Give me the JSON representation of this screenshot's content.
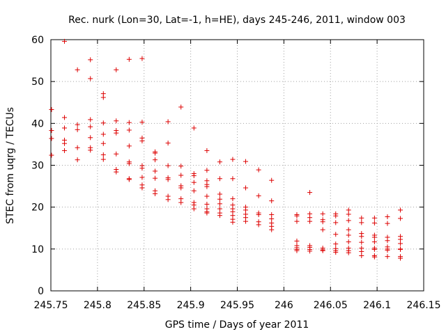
{
  "chart_data": {
    "type": "scatter",
    "title": "Rec. nurk (Lon=30, Lat=-1, h=HE), days 245-246, 2011, window 003",
    "xlabel": "GPS time / Days of year 2011",
    "ylabel": "STEC from uqrg / TECUs",
    "xlim": [
      245.75,
      246.15
    ],
    "ylim": [
      0,
      60
    ],
    "xticks": [
      245.75,
      245.8,
      245.85,
      245.9,
      245.95,
      246,
      246.05,
      246.1,
      246.15
    ],
    "xtick_labels": [
      "245.75",
      "245.8",
      "245.85",
      "245.9",
      "245.95",
      "246",
      "246.05",
      "246.1",
      "246.15"
    ],
    "yticks": [
      0,
      10,
      20,
      30,
      40,
      50,
      60
    ],
    "ytick_labels": [
      "0",
      "10",
      "20",
      "30",
      "40",
      "50",
      "60"
    ],
    "grid": true,
    "marker": "+",
    "color": "#dd0000",
    "points": [
      [
        245.7507,
        43.3
      ],
      [
        245.7507,
        38.3
      ],
      [
        245.7507,
        36.4
      ],
      [
        245.7507,
        32.4
      ],
      [
        245.7646,
        59.6
      ],
      [
        245.7646,
        41.4
      ],
      [
        245.7646,
        38.9
      ],
      [
        245.7646,
        36.0
      ],
      [
        245.7646,
        35.2
      ],
      [
        245.7646,
        33.5
      ],
      [
        245.7785,
        52.8
      ],
      [
        245.7785,
        39.7
      ],
      [
        245.7785,
        38.5
      ],
      [
        245.7785,
        34.2
      ],
      [
        245.7785,
        31.3
      ],
      [
        245.7924,
        55.2
      ],
      [
        245.7924,
        50.7
      ],
      [
        245.7924,
        40.9
      ],
      [
        245.7924,
        39.2
      ],
      [
        245.7924,
        36.6
      ],
      [
        245.7924,
        34.2
      ],
      [
        245.7924,
        33.6
      ],
      [
        245.8063,
        47.1
      ],
      [
        245.8063,
        46.2
      ],
      [
        245.8063,
        40.1
      ],
      [
        245.8063,
        37.4
      ],
      [
        245.8063,
        35.2
      ],
      [
        245.8063,
        32.5
      ],
      [
        245.8063,
        31.4
      ],
      [
        245.8201,
        52.8
      ],
      [
        245.8201,
        40.6
      ],
      [
        245.8201,
        38.3
      ],
      [
        245.8201,
        37.7
      ],
      [
        245.8201,
        32.7
      ],
      [
        245.8201,
        29.0
      ],
      [
        245.8201,
        28.4
      ],
      [
        245.834,
        55.3
      ],
      [
        245.834,
        40.2
      ],
      [
        245.834,
        38.4
      ],
      [
        245.834,
        34.6
      ],
      [
        245.834,
        30.8
      ],
      [
        245.834,
        30.4
      ],
      [
        245.834,
        26.8
      ],
      [
        245.834,
        26.6
      ],
      [
        245.8479,
        55.5
      ],
      [
        245.8479,
        40.3
      ],
      [
        245.8479,
        36.5
      ],
      [
        245.8479,
        35.8
      ],
      [
        245.8479,
        29.9
      ],
      [
        245.8479,
        29.3
      ],
      [
        245.8479,
        27.1
      ],
      [
        245.8479,
        25.3
      ],
      [
        245.8479,
        24.6
      ],
      [
        245.8618,
        33.2
      ],
      [
        245.8618,
        32.9
      ],
      [
        245.8618,
        31.3
      ],
      [
        245.8618,
        28.6
      ],
      [
        245.8618,
        26.9
      ],
      [
        245.8618,
        23.9
      ],
      [
        245.8618,
        23.2
      ],
      [
        245.8757,
        40.4
      ],
      [
        245.8757,
        35.3
      ],
      [
        245.8757,
        29.9
      ],
      [
        245.8757,
        27.0
      ],
      [
        245.8757,
        26.6
      ],
      [
        245.8757,
        22.6
      ],
      [
        245.8757,
        21.8
      ],
      [
        245.8896,
        43.9
      ],
      [
        245.8896,
        29.8
      ],
      [
        245.8896,
        27.6
      ],
      [
        245.8896,
        25.1
      ],
      [
        245.8896,
        24.6
      ],
      [
        245.8896,
        22.0
      ],
      [
        245.8896,
        21.1
      ],
      [
        245.9035,
        38.9
      ],
      [
        245.9035,
        28.0
      ],
      [
        245.9035,
        27.5
      ],
      [
        245.9035,
        25.9
      ],
      [
        245.9035,
        23.9
      ],
      [
        245.9035,
        21.1
      ],
      [
        245.9035,
        20.5
      ],
      [
        245.9035,
        19.6
      ],
      [
        245.9174,
        33.5
      ],
      [
        245.9174,
        28.8
      ],
      [
        245.9174,
        26.3
      ],
      [
        245.9174,
        25.4
      ],
      [
        245.9174,
        24.9
      ],
      [
        245.9174,
        22.6
      ],
      [
        245.9174,
        20.7
      ],
      [
        245.9174,
        19.6
      ],
      [
        245.9174,
        18.9
      ],
      [
        245.9174,
        18.6
      ],
      [
        245.9313,
        30.8
      ],
      [
        245.9313,
        26.8
      ],
      [
        245.9313,
        23.1
      ],
      [
        245.9313,
        21.9
      ],
      [
        245.9313,
        20.8
      ],
      [
        245.9313,
        19.6
      ],
      [
        245.9313,
        18.6
      ],
      [
        245.9313,
        18.0
      ],
      [
        245.9451,
        31.4
      ],
      [
        245.9451,
        26.8
      ],
      [
        245.9451,
        22.0
      ],
      [
        245.9451,
        20.5
      ],
      [
        245.9451,
        19.6
      ],
      [
        245.9451,
        18.9
      ],
      [
        245.9451,
        18.0
      ],
      [
        245.9451,
        17.1
      ],
      [
        245.9451,
        16.4
      ],
      [
        245.959,
        30.9
      ],
      [
        245.959,
        24.6
      ],
      [
        245.959,
        20.0
      ],
      [
        245.959,
        19.3
      ],
      [
        245.959,
        18.3
      ],
      [
        245.959,
        17.5
      ],
      [
        245.959,
        16.6
      ],
      [
        245.9729,
        28.9
      ],
      [
        245.9729,
        22.7
      ],
      [
        245.9729,
        18.6
      ],
      [
        245.9729,
        18.2
      ],
      [
        245.9729,
        16.5
      ],
      [
        245.9729,
        15.8
      ],
      [
        245.9868,
        26.4
      ],
      [
        245.9868,
        21.5
      ],
      [
        245.9868,
        18.2
      ],
      [
        245.9868,
        17.2
      ],
      [
        245.9868,
        16.2
      ],
      [
        245.9868,
        15.4
      ],
      [
        245.9868,
        14.6
      ],
      [
        246.0139,
        18.2
      ],
      [
        246.0139,
        17.9
      ],
      [
        246.0139,
        16.6
      ],
      [
        246.0139,
        11.9
      ],
      [
        246.0139,
        10.8
      ],
      [
        246.0139,
        10.3
      ],
      [
        246.0139,
        9.9
      ],
      [
        246.0139,
        9.6
      ],
      [
        246.0278,
        23.5
      ],
      [
        246.0278,
        18.4
      ],
      [
        246.0278,
        17.5
      ],
      [
        246.0278,
        16.6
      ],
      [
        246.0278,
        10.8
      ],
      [
        246.0278,
        10.4
      ],
      [
        246.0278,
        9.9
      ],
      [
        246.0278,
        9.5
      ],
      [
        246.0417,
        18.4
      ],
      [
        246.0417,
        17.0
      ],
      [
        246.0417,
        16.5
      ],
      [
        246.0417,
        14.6
      ],
      [
        246.0417,
        10.2
      ],
      [
        246.0417,
        9.8
      ],
      [
        246.0417,
        9.6
      ],
      [
        246.0556,
        18.4
      ],
      [
        246.0556,
        17.9
      ],
      [
        246.0556,
        16.3
      ],
      [
        246.0556,
        13.5
      ],
      [
        246.0556,
        11.2
      ],
      [
        246.0556,
        10.1
      ],
      [
        246.0556,
        9.6
      ],
      [
        246.0556,
        9.2
      ],
      [
        246.0694,
        19.3
      ],
      [
        246.0694,
        18.3
      ],
      [
        246.0694,
        16.8
      ],
      [
        246.0694,
        14.6
      ],
      [
        246.0694,
        13.3
      ],
      [
        246.0694,
        11.7
      ],
      [
        246.0694,
        10.2
      ],
      [
        246.0694,
        9.6
      ],
      [
        246.0694,
        9.1
      ],
      [
        246.0833,
        17.4
      ],
      [
        246.0833,
        16.3
      ],
      [
        246.0833,
        13.7
      ],
      [
        246.0833,
        13.0
      ],
      [
        246.0833,
        11.6
      ],
      [
        246.0833,
        10.2
      ],
      [
        246.0833,
        9.4
      ],
      [
        246.0833,
        8.4
      ],
      [
        246.0972,
        17.4
      ],
      [
        246.0972,
        16.2
      ],
      [
        246.0972,
        13.3
      ],
      [
        246.0972,
        12.8
      ],
      [
        246.0972,
        11.7
      ],
      [
        246.0972,
        10.2
      ],
      [
        246.0972,
        9.9
      ],
      [
        246.0972,
        8.4
      ],
      [
        246.0972,
        8.1
      ],
      [
        246.1111,
        17.7
      ],
      [
        246.1111,
        16.1
      ],
      [
        246.1111,
        12.8
      ],
      [
        246.1111,
        12.0
      ],
      [
        246.1111,
        10.5
      ],
      [
        246.1111,
        10.0
      ],
      [
        246.1111,
        9.7
      ],
      [
        246.1111,
        8.2
      ],
      [
        246.125,
        19.3
      ],
      [
        246.125,
        17.3
      ],
      [
        246.125,
        13.0
      ],
      [
        246.125,
        12.3
      ],
      [
        246.125,
        11.3
      ],
      [
        246.125,
        10.0
      ],
      [
        246.125,
        9.9
      ],
      [
        246.125,
        8.2
      ],
      [
        246.125,
        7.8
      ]
    ]
  }
}
